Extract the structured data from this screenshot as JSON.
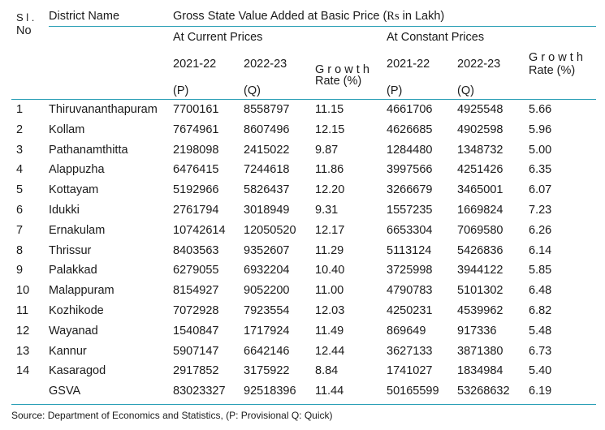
{
  "header": {
    "sl_top": "S l .",
    "sl_bottom": "No",
    "district": "District Name",
    "gsva_title": "Gross State Value Added at Basic Price (",
    "rs": "Rs",
    "gsva_title_end": "  in Lakh)",
    "current_prices": "At Current Prices",
    "constant_prices": "At Constant Prices",
    "cur_y1": "2021-22",
    "cur_y2": "2022-23",
    "cur_growth_1": "G r o w t h",
    "cur_growth_2": "Rate (%)",
    "cur_y1_tag": "(P)",
    "cur_y2_tag": "(Q)",
    "con_y1": "2021-22",
    "con_y2": "2022-23",
    "con_growth_1": "G r o w t h",
    "con_growth_2": "Rate (%)",
    "con_y1_tag": "(P)",
    "con_y2_tag": "(Q)"
  },
  "rows": [
    {
      "sl": "1",
      "district": "Thiruvananthapuram",
      "c1": "7700161",
      "c2": "8558797",
      "cg": "11.15",
      "k1": "4661706",
      "k2": "4925548",
      "kg": "5.66"
    },
    {
      "sl": "2",
      "district": "Kollam",
      "c1": "7674961",
      "c2": "8607496",
      "cg": "12.15",
      "k1": "4626685",
      "k2": "4902598",
      "kg": "5.96"
    },
    {
      "sl": "3",
      "district": "Pathanamthitta",
      "c1": "2198098",
      "c2": "2415022",
      "cg": "9.87",
      "k1": "1284480",
      "k2": "1348732",
      "kg": "5.00"
    },
    {
      "sl": "4",
      "district": "Alappuzha",
      "c1": "6476415",
      "c2": "7244618",
      "cg": "11.86",
      "k1": "3997566",
      "k2": "4251426",
      "kg": "6.35"
    },
    {
      "sl": "5",
      "district": "Kottayam",
      "c1": "5192966",
      "c2": "5826437",
      "cg": "12.20",
      "k1": "3266679",
      "k2": "3465001",
      "kg": "6.07"
    },
    {
      "sl": "6",
      "district": "Idukki",
      "c1": "2761794",
      "c2": "3018949",
      "cg": "9.31",
      "k1": "1557235",
      "k2": "1669824",
      "kg": "7.23"
    },
    {
      "sl": "7",
      "district": "Ernakulam",
      "c1": "10742614",
      "c2": "12050520",
      "cg": "12.17",
      "k1": "6653304",
      "k2": "7069580",
      "kg": "6.26"
    },
    {
      "sl": "8",
      "district": "Thrissur",
      "c1": "8403563",
      "c2": "9352607",
      "cg": "11.29",
      "k1": "5113124",
      "k2": "5426836",
      "kg": "6.14"
    },
    {
      "sl": "9",
      "district": "Palakkad",
      "c1": "6279055",
      "c2": "6932204",
      "cg": "10.40",
      "k1": "3725998",
      "k2": "3944122",
      "kg": "5.85"
    },
    {
      "sl": "10",
      "district": "Malappuram",
      "c1": "8154927",
      "c2": "9052200",
      "cg": "11.00",
      "k1": "4790783",
      "k2": "5101302",
      "kg": "6.48"
    },
    {
      "sl": "11",
      "district": "Kozhikode",
      "c1": "7072928",
      "c2": "7923554",
      "cg": "12.03",
      "k1": "4250231",
      "k2": "4539962",
      "kg": "6.82"
    },
    {
      "sl": "12",
      "district": "Wayanad",
      "c1": "1540847",
      "c2": "1717924",
      "cg": "11.49",
      "k1": "869649",
      "k2": "917336",
      "kg": "5.48"
    },
    {
      "sl": "13",
      "district": "Kannur",
      "c1": "5907147",
      "c2": "6642146",
      "cg": "12.44",
      "k1": "3627133",
      "k2": "3871380",
      "kg": "6.73"
    },
    {
      "sl": "14",
      "district": "Kasaragod",
      "c1": "2917852",
      "c2": "3175922",
      "cg": "8.84",
      "k1": "1741027",
      "k2": "1834984",
      "kg": "5.40"
    },
    {
      "sl": "",
      "district": "GSVA",
      "c1": "83023327",
      "c2": "92518396",
      "cg": "11.44",
      "k1": "50165599",
      "k2": "53268632",
      "kg": "6.19"
    }
  ],
  "source": "Source: Department of Economics and Statistics, (P: Provisional Q: Quick)"
}
